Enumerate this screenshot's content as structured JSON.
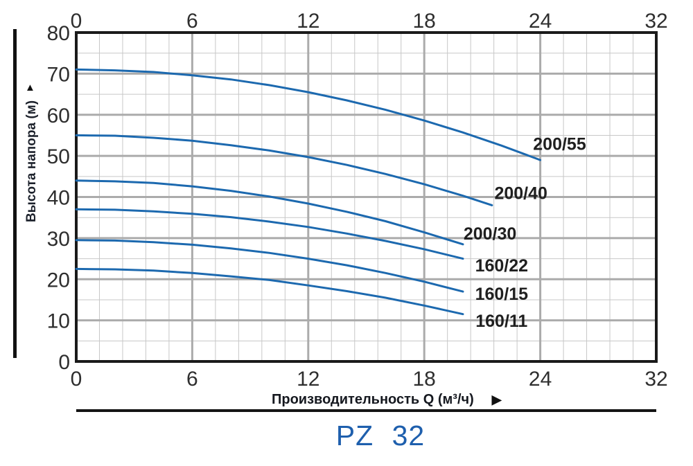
{
  "page": {
    "title": "PZ 32",
    "title_color": "#1e5fad"
  },
  "x_axis": {
    "title": "Производительность Q (м³/ч)",
    "arrow": "▶",
    "ticks": [
      "0",
      "6",
      "12",
      "18",
      "24",
      "32"
    ]
  },
  "y_axis": {
    "title": "Высота напора (м)",
    "arrow": "▲",
    "ticks": [
      "80",
      "70",
      "60",
      "50",
      "40",
      "30",
      "20",
      "10",
      "0"
    ]
  },
  "chart_data": {
    "type": "line",
    "title": "PZ 32",
    "xlabel": "Производительность Q (м³/ч)",
    "ylabel": "Высота напора (м)",
    "xlim": [
      0,
      32
    ],
    "ylim": [
      0,
      80
    ],
    "x_ticks": [
      0,
      6,
      12,
      18,
      24,
      32
    ],
    "y_ticks": [
      0,
      10,
      20,
      30,
      40,
      50,
      60,
      70,
      80
    ],
    "grid": true,
    "legend_position": "inline-labels",
    "curve_color": "#1c69af",
    "grid_minor_color": "#c7c7c7",
    "grid_major_color": "#ababab",
    "series": [
      {
        "name": "200/55",
        "q": [
          0,
          2,
          4,
          6,
          8,
          10,
          12,
          14,
          16,
          18,
          20,
          22,
          24
        ],
        "h": [
          71,
          70.8,
          70.4,
          69.6,
          68.6,
          67.2,
          65.5,
          63.5,
          61.2,
          58.6,
          55.7,
          52.5,
          49
        ],
        "label_at": {
          "q": 25.0,
          "h": 53.0
        }
      },
      {
        "name": "200/40",
        "q": [
          0,
          2,
          4,
          6,
          8,
          10,
          12,
          14,
          16,
          18,
          20,
          21.5
        ],
        "h": [
          55,
          54.9,
          54.4,
          53.7,
          52.6,
          51.3,
          49.7,
          47.8,
          45.6,
          43.1,
          40.3,
          38
        ],
        "label_at": {
          "q": 23.0,
          "h": 41.0
        }
      },
      {
        "name": "200/30",
        "q": [
          0,
          2,
          4,
          6,
          8,
          10,
          12,
          14,
          16,
          18,
          20
        ],
        "h": [
          44,
          43.8,
          43.4,
          42.6,
          41.5,
          40.1,
          38.4,
          36.4,
          34.1,
          31.4,
          28.5
        ],
        "label_at": {
          "q": 21.4,
          "h": 31.2
        }
      },
      {
        "name": "160/22",
        "q": [
          0,
          2,
          4,
          6,
          8,
          10,
          12,
          14,
          16,
          18,
          20
        ],
        "h": [
          37,
          36.9,
          36.5,
          35.9,
          35.1,
          34,
          32.7,
          31.1,
          29.3,
          27.3,
          25
        ],
        "label_at": {
          "q": 22.0,
          "h": 23.4
        }
      },
      {
        "name": "160/15",
        "q": [
          0,
          2,
          4,
          6,
          8,
          10,
          12,
          14,
          16,
          18,
          20
        ],
        "h": [
          29.5,
          29.4,
          29,
          28.4,
          27.5,
          26.4,
          25,
          23.4,
          21.5,
          19.4,
          17
        ],
        "label_at": {
          "q": 22.0,
          "h": 16.5
        }
      },
      {
        "name": "160/11",
        "q": [
          0,
          2,
          4,
          6,
          8,
          10,
          12,
          14,
          16,
          18,
          20
        ],
        "h": [
          22.5,
          22.4,
          22.1,
          21.5,
          20.7,
          19.8,
          18.5,
          17.1,
          15.5,
          13.6,
          11.5
        ],
        "label_at": {
          "q": 22.0,
          "h": 9.9
        }
      }
    ]
  }
}
